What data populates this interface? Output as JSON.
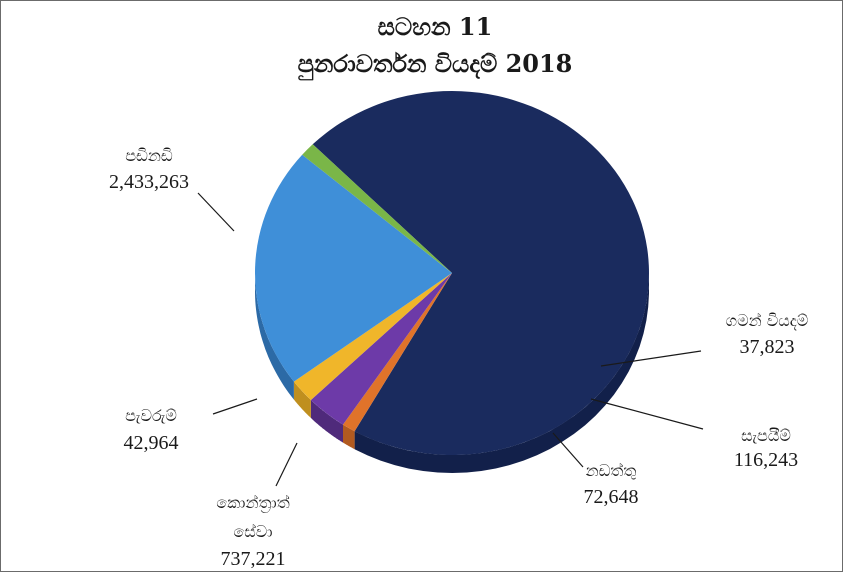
{
  "chart_data": {
    "type": "pie",
    "title": "සටහන 11",
    "subtitle": "පුනරාවර්තන වියදම් 2018",
    "slices": [
      {
        "name": "පඩිනඩි",
        "value_text": "2,433,263",
        "value": 2433263,
        "color": "#1a2b5e",
        "side": "#12204a"
      },
      {
        "name": "ගමන් වියදම්",
        "value_text": "37,823",
        "value": 37823,
        "color": "#e0732a",
        "side": "#b15a20"
      },
      {
        "name": "සැපයීම්",
        "value_text": "116,243",
        "value": 116243,
        "color": "#6d3aa8",
        "side": "#4f2a7b"
      },
      {
        "name": "නඩත්තු",
        "value_text": "72,648",
        "value": 72648,
        "color": "#f0b62a",
        "side": "#bf8f1f"
      },
      {
        "name": "කොන්ත්‍රාත් සේවා",
        "name_lines": [
          "කොන්ත්‍රාත්",
          "සේවා"
        ],
        "value_text": "737,221",
        "value": 737221,
        "color": "#3f8fd8",
        "side": "#2c6aa6"
      },
      {
        "name": "පැවරුම්",
        "value_text": "42,964",
        "value": 42964,
        "color": "#7ab648",
        "side": "#5a8a34"
      }
    ]
  }
}
